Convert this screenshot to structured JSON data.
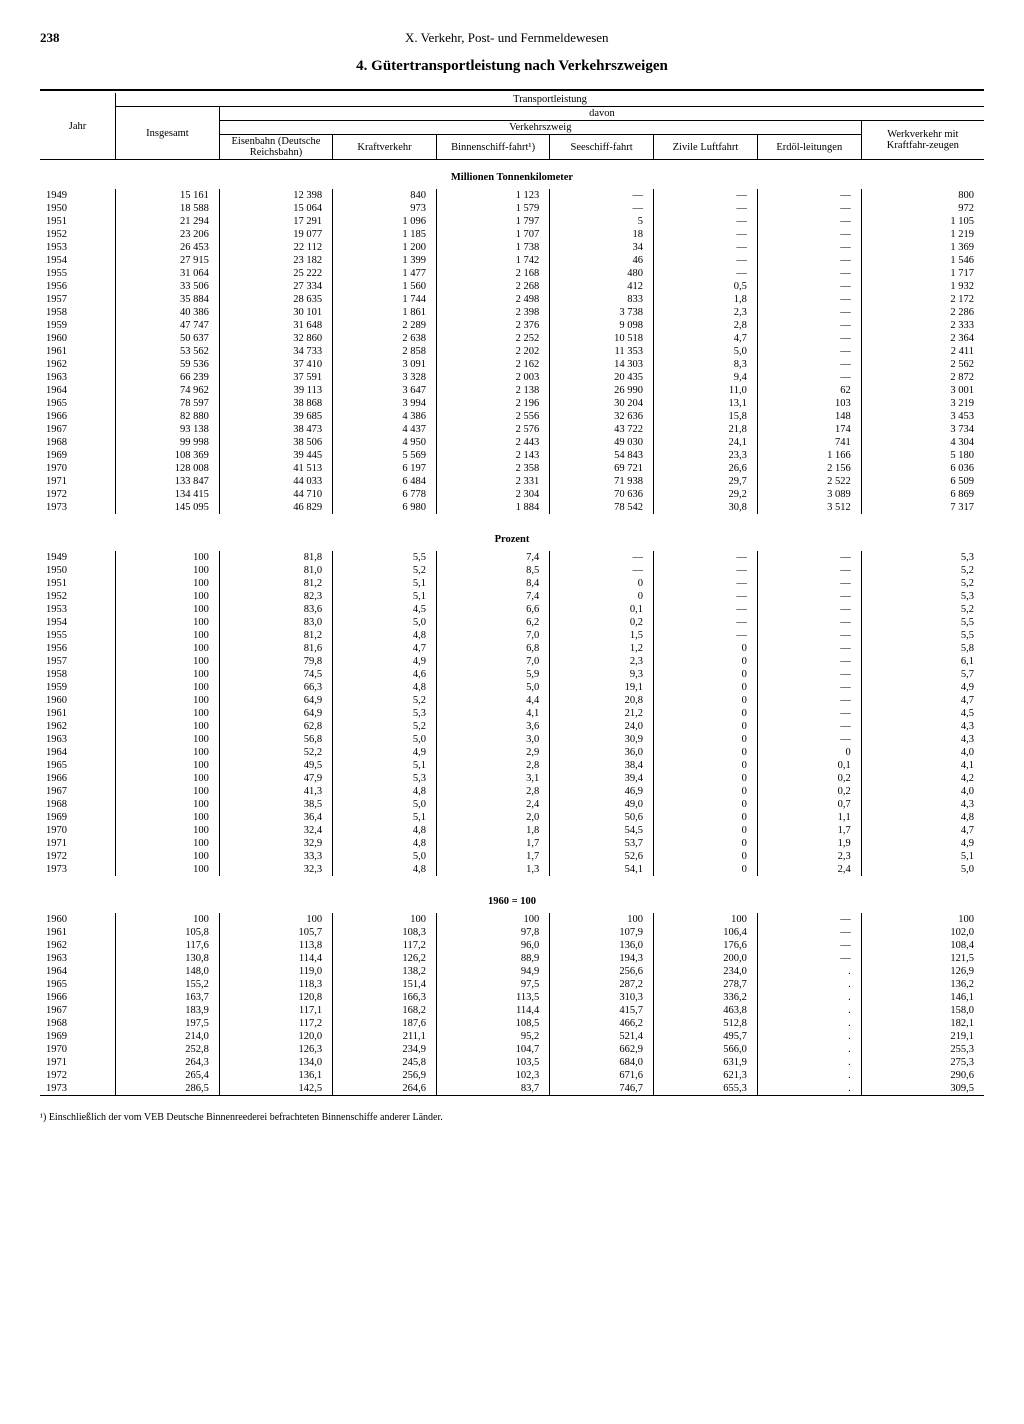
{
  "page_number": "238",
  "chapter": "X. Verkehr, Post- und Fernmeldewesen",
  "title": "4. Gütertransportleistung nach Verkehrszweigen",
  "headers": {
    "jahr": "Jahr",
    "insgesamt": "Insgesamt",
    "transportleistung": "Transportleistung",
    "davon": "davon",
    "verkehrszweig": "Verkehrszweig",
    "eisenbahn": "Eisenbahn (Deutsche Reichsbahn)",
    "kraftverkehr": "Kraftverkehr",
    "binnenschiff": "Binnenschiff-fahrt¹)",
    "seeschiff": "Seeschiff-fahrt",
    "luftfahrt": "Zivile Luftfahrt",
    "erdoel": "Erdöl-leitungen",
    "werkverkehr": "Werkverkehr mit Kraftfahr-zeugen"
  },
  "sections": {
    "s1": "Millionen Tonnenkilometer",
    "s2": "Prozent",
    "s3": "1960 = 100"
  },
  "table1": [
    [
      "1949",
      "15 161",
      "12 398",
      "840",
      "1 123",
      "—",
      "—",
      "—",
      "800"
    ],
    [
      "1950",
      "18 588",
      "15 064",
      "973",
      "1 579",
      "—",
      "—",
      "—",
      "972"
    ],
    [
      "1951",
      "21 294",
      "17 291",
      "1 096",
      "1 797",
      "5",
      "—",
      "—",
      "1 105"
    ],
    [
      "1952",
      "23 206",
      "19 077",
      "1 185",
      "1 707",
      "18",
      "—",
      "—",
      "1 219"
    ],
    [
      "1953",
      "26 453",
      "22 112",
      "1 200",
      "1 738",
      "34",
      "—",
      "—",
      "1 369"
    ],
    [
      "1954",
      "27 915",
      "23 182",
      "1 399",
      "1 742",
      "46",
      "—",
      "—",
      "1 546"
    ],
    [
      "1955",
      "31 064",
      "25 222",
      "1 477",
      "2 168",
      "480",
      "—",
      "—",
      "1 717"
    ],
    [
      "1956",
      "33 506",
      "27 334",
      "1 560",
      "2 268",
      "412",
      "0,5",
      "—",
      "1 932"
    ],
    [
      "1957",
      "35 884",
      "28 635",
      "1 744",
      "2 498",
      "833",
      "1,8",
      "—",
      "2 172"
    ],
    [
      "1958",
      "40 386",
      "30 101",
      "1 861",
      "2 398",
      "3 738",
      "2,3",
      "—",
      "2 286"
    ],
    [
      "1959",
      "47 747",
      "31 648",
      "2 289",
      "2 376",
      "9 098",
      "2,8",
      "—",
      "2 333"
    ],
    [
      "1960",
      "50 637",
      "32 860",
      "2 638",
      "2 252",
      "10 518",
      "4,7",
      "—",
      "2 364"
    ],
    [
      "1961",
      "53 562",
      "34 733",
      "2 858",
      "2 202",
      "11 353",
      "5,0",
      "—",
      "2 411"
    ],
    [
      "1962",
      "59 536",
      "37 410",
      "3 091",
      "2 162",
      "14 303",
      "8,3",
      "—",
      "2 562"
    ],
    [
      "1963",
      "66 239",
      "37 591",
      "3 328",
      "2 003",
      "20 435",
      "9,4",
      "—",
      "2 872"
    ],
    [
      "1964",
      "74 962",
      "39 113",
      "3 647",
      "2 138",
      "26 990",
      "11,0",
      "62",
      "3 001"
    ],
    [
      "1965",
      "78 597",
      "38 868",
      "3 994",
      "2 196",
      "30 204",
      "13,1",
      "103",
      "3 219"
    ],
    [
      "1966",
      "82 880",
      "39 685",
      "4 386",
      "2 556",
      "32 636",
      "15,8",
      "148",
      "3 453"
    ],
    [
      "1967",
      "93 138",
      "38 473",
      "4 437",
      "2 576",
      "43 722",
      "21,8",
      "174",
      "3 734"
    ],
    [
      "1968",
      "99 998",
      "38 506",
      "4 950",
      "2 443",
      "49 030",
      "24,1",
      "741",
      "4 304"
    ],
    [
      "1969",
      "108 369",
      "39 445",
      "5 569",
      "2 143",
      "54 843",
      "23,3",
      "1 166",
      "5 180"
    ],
    [
      "1970",
      "128 008",
      "41 513",
      "6 197",
      "2 358",
      "69 721",
      "26,6",
      "2 156",
      "6 036"
    ],
    [
      "1971",
      "133 847",
      "44 033",
      "6 484",
      "2 331",
      "71 938",
      "29,7",
      "2 522",
      "6 509"
    ],
    [
      "1972",
      "134 415",
      "44 710",
      "6 778",
      "2 304",
      "70 636",
      "29,2",
      "3 089",
      "6 869"
    ],
    [
      "1973",
      "145 095",
      "46 829",
      "6 980",
      "1 884",
      "78 542",
      "30,8",
      "3 512",
      "7 317"
    ]
  ],
  "table2": [
    [
      "1949",
      "100",
      "81,8",
      "5,5",
      "7,4",
      "—",
      "—",
      "—",
      "5,3"
    ],
    [
      "1950",
      "100",
      "81,0",
      "5,2",
      "8,5",
      "—",
      "—",
      "—",
      "5,2"
    ],
    [
      "1951",
      "100",
      "81,2",
      "5,1",
      "8,4",
      "0",
      "—",
      "—",
      "5,2"
    ],
    [
      "1952",
      "100",
      "82,3",
      "5,1",
      "7,4",
      "0",
      "—",
      "—",
      "5,3"
    ],
    [
      "1953",
      "100",
      "83,6",
      "4,5",
      "6,6",
      "0,1",
      "—",
      "—",
      "5,2"
    ],
    [
      "1954",
      "100",
      "83,0",
      "5,0",
      "6,2",
      "0,2",
      "—",
      "—",
      "5,5"
    ],
    [
      "1955",
      "100",
      "81,2",
      "4,8",
      "7,0",
      "1,5",
      "—",
      "—",
      "5,5"
    ],
    [
      "1956",
      "100",
      "81,6",
      "4,7",
      "6,8",
      "1,2",
      "0",
      "—",
      "5,8"
    ],
    [
      "1957",
      "100",
      "79,8",
      "4,9",
      "7,0",
      "2,3",
      "0",
      "—",
      "6,1"
    ],
    [
      "1958",
      "100",
      "74,5",
      "4,6",
      "5,9",
      "9,3",
      "0",
      "—",
      "5,7"
    ],
    [
      "1959",
      "100",
      "66,3",
      "4,8",
      "5,0",
      "19,1",
      "0",
      "—",
      "4,9"
    ],
    [
      "1960",
      "100",
      "64,9",
      "5,2",
      "4,4",
      "20,8",
      "0",
      "—",
      "4,7"
    ],
    [
      "1961",
      "100",
      "64,9",
      "5,3",
      "4,1",
      "21,2",
      "0",
      "—",
      "4,5"
    ],
    [
      "1962",
      "100",
      "62,8",
      "5,2",
      "3,6",
      "24,0",
      "0",
      "—",
      "4,3"
    ],
    [
      "1963",
      "100",
      "56,8",
      "5,0",
      "3,0",
      "30,9",
      "0",
      "—",
      "4,3"
    ],
    [
      "1964",
      "100",
      "52,2",
      "4,9",
      "2,9",
      "36,0",
      "0",
      "0",
      "4,0"
    ],
    [
      "1965",
      "100",
      "49,5",
      "5,1",
      "2,8",
      "38,4",
      "0",
      "0,1",
      "4,1"
    ],
    [
      "1966",
      "100",
      "47,9",
      "5,3",
      "3,1",
      "39,4",
      "0",
      "0,2",
      "4,2"
    ],
    [
      "1967",
      "100",
      "41,3",
      "4,8",
      "2,8",
      "46,9",
      "0",
      "0,2",
      "4,0"
    ],
    [
      "1968",
      "100",
      "38,5",
      "5,0",
      "2,4",
      "49,0",
      "0",
      "0,7",
      "4,3"
    ],
    [
      "1969",
      "100",
      "36,4",
      "5,1",
      "2,0",
      "50,6",
      "0",
      "1,1",
      "4,8"
    ],
    [
      "1970",
      "100",
      "32,4",
      "4,8",
      "1,8",
      "54,5",
      "0",
      "1,7",
      "4,7"
    ],
    [
      "1971",
      "100",
      "32,9",
      "4,8",
      "1,7",
      "53,7",
      "0",
      "1,9",
      "4,9"
    ],
    [
      "1972",
      "100",
      "33,3",
      "5,0",
      "1,7",
      "52,6",
      "0",
      "2,3",
      "5,1"
    ],
    [
      "1973",
      "100",
      "32,3",
      "4,8",
      "1,3",
      "54,1",
      "0",
      "2,4",
      "5,0"
    ]
  ],
  "table3": [
    [
      "1960",
      "100",
      "100",
      "100",
      "100",
      "100",
      "100",
      "—",
      "100"
    ],
    [
      "1961",
      "105,8",
      "105,7",
      "108,3",
      "97,8",
      "107,9",
      "106,4",
      "—",
      "102,0"
    ],
    [
      "1962",
      "117,6",
      "113,8",
      "117,2",
      "96,0",
      "136,0",
      "176,6",
      "—",
      "108,4"
    ],
    [
      "1963",
      "130,8",
      "114,4",
      "126,2",
      "88,9",
      "194,3",
      "200,0",
      "—",
      "121,5"
    ],
    [
      "1964",
      "148,0",
      "119,0",
      "138,2",
      "94,9",
      "256,6",
      "234,0",
      ".",
      "126,9"
    ],
    [
      "1965",
      "155,2",
      "118,3",
      "151,4",
      "97,5",
      "287,2",
      "278,7",
      ".",
      "136,2"
    ],
    [
      "1966",
      "163,7",
      "120,8",
      "166,3",
      "113,5",
      "310,3",
      "336,2",
      ".",
      "146,1"
    ],
    [
      "1967",
      "183,9",
      "117,1",
      "168,2",
      "114,4",
      "415,7",
      "463,8",
      ".",
      "158,0"
    ],
    [
      "1968",
      "197,5",
      "117,2",
      "187,6",
      "108,5",
      "466,2",
      "512,8",
      ".",
      "182,1"
    ],
    [
      "1969",
      "214,0",
      "120,0",
      "211,1",
      "95,2",
      "521,4",
      "495,7",
      ".",
      "219,1"
    ],
    [
      "1970",
      "252,8",
      "126,3",
      "234,9",
      "104,7",
      "662,9",
      "566,0",
      ".",
      "255,3"
    ],
    [
      "1971",
      "264,3",
      "134,0",
      "245,8",
      "103,5",
      "684,0",
      "631,9",
      ".",
      "275,3"
    ],
    [
      "1972",
      "265,4",
      "136,1",
      "256,9",
      "102,3",
      "671,6",
      "621,3",
      ".",
      "290,6"
    ],
    [
      "1973",
      "286,5",
      "142,5",
      "264,6",
      "83,7",
      "746,7",
      "655,3",
      ".",
      "309,5"
    ]
  ],
  "footnote": "¹) Einschließlich der vom VEB Deutsche Binnenreederei befrachteten Binnenschiffe anderer Länder."
}
